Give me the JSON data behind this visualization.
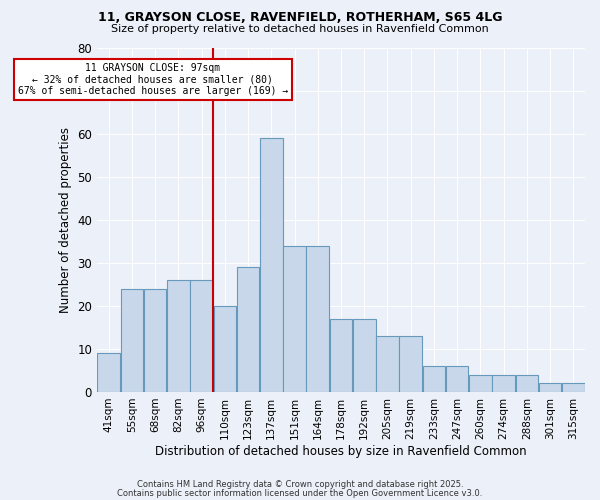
{
  "title1": "11, GRAYSON CLOSE, RAVENFIELD, ROTHERHAM, S65 4LG",
  "title2": "Size of property relative to detached houses in Ravenfield Common",
  "xlabel": "Distribution of detached houses by size in Ravenfield Common",
  "ylabel": "Number of detached properties",
  "bar_heights": [
    9,
    24,
    24,
    26,
    26,
    20,
    29,
    59,
    34,
    34,
    17,
    17,
    13,
    13,
    6,
    6,
    4,
    4,
    4,
    2,
    2
  ],
  "bin_labels": [
    "41sqm",
    "55sqm",
    "68sqm",
    "82sqm",
    "96sqm",
    "110sqm",
    "123sqm",
    "137sqm",
    "151sqm",
    "164sqm",
    "178sqm",
    "192sqm",
    "205sqm",
    "219sqm",
    "233sqm",
    "247sqm",
    "260sqm",
    "274sqm",
    "288sqm",
    "301sqm",
    "315sqm"
  ],
  "bar_color": "#c8d8ea",
  "bar_edge_color": "#6699bb",
  "vline_x": 4.5,
  "vline_color": "#cc0000",
  "annotation_title": "11 GRAYSON CLOSE: 97sqm",
  "annotation_line2": "← 32% of detached houses are smaller (80)",
  "annotation_line3": "67% of semi-detached houses are larger (169) →",
  "annotation_box_color": "#ffffff",
  "annotation_box_edge": "#cc0000",
  "ylim": [
    0,
    80
  ],
  "yticks": [
    0,
    10,
    20,
    30,
    40,
    50,
    60,
    70,
    80
  ],
  "footer1": "Contains HM Land Registry data © Crown copyright and database right 2025.",
  "footer2": "Contains public sector information licensed under the Open Government Licence v3.0.",
  "bg_color": "#ecf0f8",
  "plot_bg_color": "#ecf0f8"
}
